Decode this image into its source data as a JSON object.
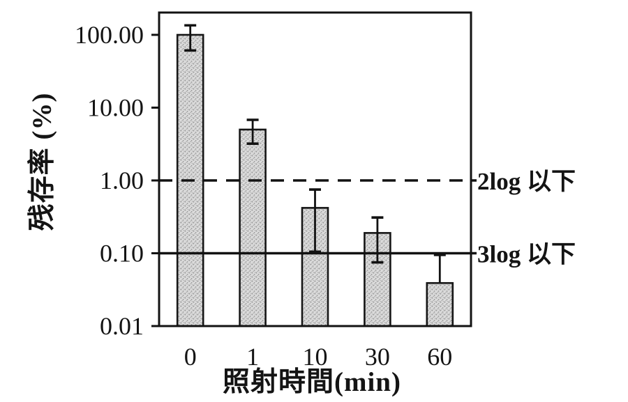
{
  "figure": {
    "background": "#ffffff"
  },
  "chart_data": {
    "type": "bar",
    "title": "",
    "xlabel": "照射時間(min)",
    "ylabel": "残存率 (%)",
    "y_scale": "log",
    "ylim": [
      0.01,
      200
    ],
    "grid": false,
    "legend_position": "none",
    "categories": [
      "0",
      "1",
      "10",
      "30",
      "60"
    ],
    "y_ticks": [
      {
        "label": "100.00",
        "value": 100
      },
      {
        "label": "10.00",
        "value": 10
      },
      {
        "label": "1.00",
        "value": 1
      },
      {
        "label": "0.10",
        "value": 0.1
      },
      {
        "label": "0.01",
        "value": 0.01
      }
    ],
    "series": [
      {
        "name": "残存率",
        "values": [
          100,
          5,
          0.42,
          0.19,
          0.039
        ],
        "error_high": [
          135,
          6.8,
          0.75,
          0.31,
          0.095
        ],
        "error_low": [
          61,
          3.2,
          0.105,
          0.075,
          null
        ]
      }
    ],
    "reference_lines": [
      {
        "value": 1.0,
        "style": "dashed",
        "label": "2log 以下"
      },
      {
        "value": 0.1,
        "style": "solid",
        "label": "3log 以下"
      }
    ],
    "colors": {
      "bar_fill_base": "#dcdcdc",
      "bar_fill_dot": "#9b9b9b",
      "bar_stroke": "#161616",
      "axis": "#121212",
      "text": "#141414"
    }
  }
}
